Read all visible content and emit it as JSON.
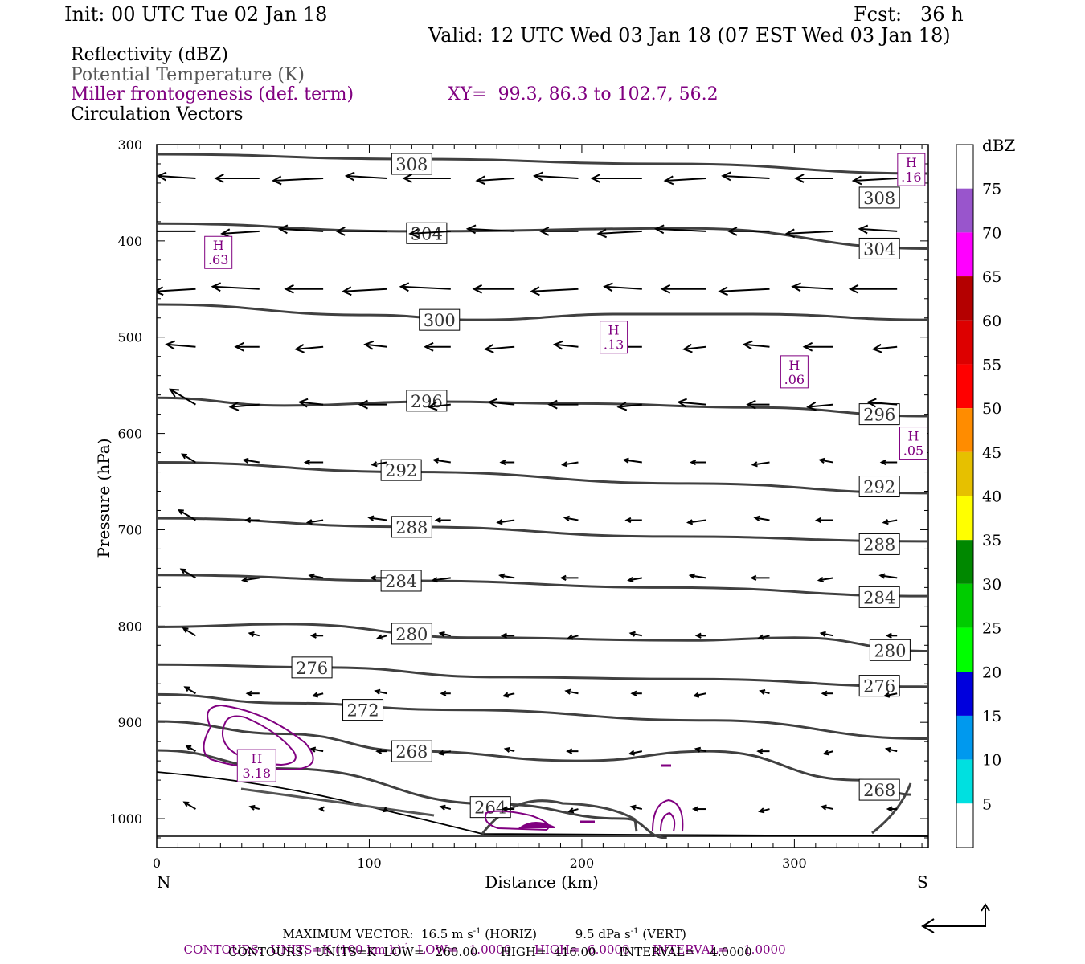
{
  "header": {
    "init": "Init: 00 UTC Tue 02 Jan 18",
    "fcst": "Fcst:   36 h",
    "valid": "Valid: 12 UTC Wed 03 Jan 18 (07 EST Wed 03 Jan 18)"
  },
  "legend": {
    "reflectivity": "Reflectivity (dBZ)",
    "theta": "Potential Temperature (K)",
    "miller": "Miller frontogenesis (def. term)",
    "xy": "XY=  99.3, 86.3 to 102.7, 56.2",
    "circ": "Circulation Vectors"
  },
  "colors": {
    "theta_line": "#404040",
    "frontogenesis": "#800080",
    "vectors": "#000000"
  },
  "colorbar": {
    "title": "dBZ",
    "labels": [
      "5",
      "10",
      "15",
      "20",
      "25",
      "30",
      "35",
      "40",
      "45",
      "50",
      "55",
      "60",
      "65",
      "70",
      "75"
    ],
    "colors": [
      "#ffffff",
      "#00e0e0",
      "#0099ee",
      "#0000dd",
      "#00ff00",
      "#00cc00",
      "#008800",
      "#ffff00",
      "#e6c000",
      "#ff8c00",
      "#ff0000",
      "#dd0000",
      "#b40000",
      "#ff00ff",
      "#9955cc",
      "#ffffff"
    ]
  },
  "footer": {
    "maxvec_pre": "MAXIMUM VECTOR:  16.5 m s",
    "maxvec_sup1": "-1",
    "maxvec_mid": " (HORIZ)          9.5 dPa s",
    "maxvec_sup2": "-1",
    "maxvec_post": " (VERT)",
    "contours1_pre": "CONTOURS:  UNITS=K (100 km h)",
    "contours1_sup": "-1",
    "contours1_post": "  LOW=   1.0000      HIGH=  6.0000      INTERVAL=    1.0000",
    "contours2": "CONTOURS:  UNITS=K  LOW=   260.00      HIGH=  416.00      INTERVAL=    4.0000"
  },
  "chart_data": {
    "type": "cross-section",
    "xlabel": "Distance (km)",
    "ylabel": "Pressure (hPa)",
    "xlim": [
      0,
      363
    ],
    "ylim": [
      1030,
      300
    ],
    "x_ticks": [
      0,
      100,
      200,
      300
    ],
    "y_ticks": [
      300,
      400,
      500,
      600,
      700,
      800,
      900,
      1000
    ],
    "x_end_labels": {
      "left": "N",
      "right": "S"
    },
    "theta_contours": [
      {
        "label": "308",
        "points": [
          [
            0,
            310
          ],
          [
            120,
            315
          ],
          [
            240,
            320
          ],
          [
            363,
            330
          ]
        ],
        "label_at": [
          [
            120,
            320
          ],
          [
            340,
            355
          ]
        ]
      },
      {
        "label": "304",
        "points": [
          [
            0,
            382
          ],
          [
            120,
            390
          ],
          [
            250,
            387
          ],
          [
            363,
            408
          ]
        ],
        "label_at": [
          [
            127,
            392
          ],
          [
            340,
            408
          ]
        ]
      },
      {
        "label": "300",
        "points": [
          [
            0,
            466
          ],
          [
            100,
            477
          ],
          [
            150,
            482
          ],
          [
            220,
            476
          ],
          [
            280,
            476
          ],
          [
            363,
            482
          ]
        ],
        "label_at": [
          [
            133,
            482
          ]
        ]
      },
      {
        "label": "296",
        "points": [
          [
            0,
            563
          ],
          [
            60,
            571
          ],
          [
            130,
            567
          ],
          [
            200,
            569
          ],
          [
            280,
            573
          ],
          [
            363,
            582
          ]
        ],
        "label_at": [
          [
            127,
            566
          ],
          [
            340,
            580
          ]
        ]
      },
      {
        "label": "292",
        "points": [
          [
            0,
            630
          ],
          [
            120,
            640
          ],
          [
            250,
            652
          ],
          [
            363,
            662
          ]
        ],
        "label_at": [
          [
            115,
            638
          ],
          [
            340,
            655
          ]
        ]
      },
      {
        "label": "288",
        "points": [
          [
            0,
            688
          ],
          [
            120,
            697
          ],
          [
            240,
            707
          ],
          [
            363,
            712
          ]
        ],
        "label_at": [
          [
            120,
            697
          ],
          [
            340,
            715
          ]
        ]
      },
      {
        "label": "284",
        "points": [
          [
            0,
            747
          ],
          [
            120,
            753
          ],
          [
            240,
            760
          ],
          [
            363,
            769
          ]
        ],
        "label_at": [
          [
            115,
            753
          ],
          [
            340,
            770
          ]
        ]
      },
      {
        "label": "280",
        "points": [
          [
            0,
            801
          ],
          [
            60,
            798
          ],
          [
            150,
            812
          ],
          [
            250,
            815
          ],
          [
            300,
            812
          ],
          [
            363,
            826
          ]
        ],
        "label_at": [
          [
            120,
            808
          ],
          [
            345,
            825
          ]
        ]
      },
      {
        "label": "276",
        "points": [
          [
            0,
            840
          ],
          [
            80,
            843
          ],
          [
            160,
            853
          ],
          [
            250,
            855
          ],
          [
            363,
            863
          ]
        ],
        "label_at": [
          [
            73,
            843
          ],
          [
            340,
            862
          ]
        ]
      },
      {
        "label": "272",
        "points": [
          [
            0,
            871
          ],
          [
            60,
            880
          ],
          [
            140,
            887
          ],
          [
            260,
            898
          ],
          [
            363,
            917
          ]
        ],
        "label_at": [
          [
            97,
            887
          ]
        ]
      },
      {
        "label": "268",
        "points": [
          [
            0,
            899
          ],
          [
            60,
            912
          ],
          [
            120,
            930
          ],
          [
            200,
            940
          ],
          [
            260,
            930
          ],
          [
            330,
            960
          ],
          [
            355,
            975
          ]
        ],
        "label_at": [
          [
            120,
            930
          ],
          [
            340,
            970
          ]
        ]
      },
      {
        "label": "264",
        "points": [
          [
            0,
            929
          ],
          [
            60,
            948
          ],
          [
            160,
            985
          ],
          [
            220,
            1000
          ],
          [
            240,
            1020
          ]
        ],
        "label_at": [
          [
            157,
            988
          ]
        ]
      }
    ],
    "frontogenesis_maxima": [
      {
        "label": "H",
        "value": ".63",
        "x": 29,
        "p": 412
      },
      {
        "label": "H",
        "value": ".16",
        "x": 355,
        "p": 326
      },
      {
        "label": "H",
        "value": ".13",
        "x": 215,
        "p": 500
      },
      {
        "label": "H",
        "value": ".06",
        "x": 300,
        "p": 536
      },
      {
        "label": "H",
        "value": ".05",
        "x": 356,
        "p": 610
      },
      {
        "label": "H",
        "value": "3.18",
        "x": 47,
        "p": 945
      }
    ],
    "vector_levels_hPa": [
      335,
      390,
      450,
      510,
      570,
      630,
      690,
      750,
      810,
      870,
      930,
      990
    ],
    "vector_columns_km": [
      10,
      40,
      70,
      100,
      130,
      160,
      190,
      220,
      250,
      280,
      310,
      340
    ]
  }
}
